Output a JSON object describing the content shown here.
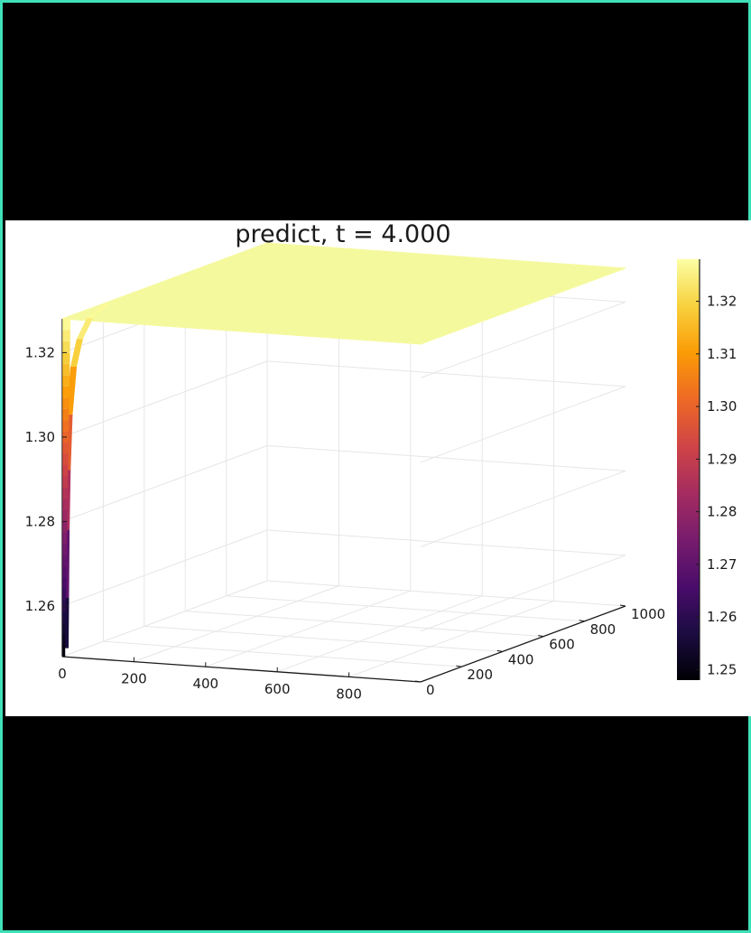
{
  "colors": {
    "frame_border": "#40e0b8",
    "letterbox": "#000000",
    "plot_background": "#ffffff",
    "surface_top": "#f5f99e",
    "colormap": [
      "#000004",
      "#1b0c41",
      "#4a0c6b",
      "#781c6d",
      "#a52c60",
      "#cf4446",
      "#ed6925",
      "#fb9b06",
      "#f7d13d",
      "#fcffa4"
    ]
  },
  "chart_data": {
    "type": "surface",
    "colormap": "inferno",
    "title": "predict, t = 4.000",
    "x_ticks": [
      0,
      200,
      400,
      600,
      800
    ],
    "y_ticks": [
      0,
      200,
      400,
      600,
      800,
      1000
    ],
    "z_ticks": [
      1.26,
      1.28,
      1.3,
      1.32
    ],
    "colorbar_ticks": [
      1.25,
      1.26,
      1.27,
      1.28,
      1.29,
      1.3,
      1.31,
      1.32
    ],
    "colorbar_labels": [
      "1.25",
      "1.26",
      "1.27",
      "1.28",
      "1.29",
      "1.30",
      "1.31",
      "1.32"
    ],
    "xlim": [
      0,
      1000
    ],
    "ylim": [
      0,
      1000
    ],
    "zlim": [
      1.248,
      1.328
    ],
    "clim": [
      1.248,
      1.328
    ],
    "surface_plateau_value": 1.328,
    "edge_profile_x0": [
      {
        "y": 0,
        "z": 1.25
      },
      {
        "y": 2,
        "z": 1.262
      },
      {
        "y": 5,
        "z": 1.278
      },
      {
        "y": 10,
        "z": 1.292
      },
      {
        "y": 20,
        "z": 1.305
      },
      {
        "y": 40,
        "z": 1.316
      },
      {
        "y": 70,
        "z": 1.322
      },
      {
        "y": 120,
        "z": 1.326
      },
      {
        "y": 200,
        "z": 1.328
      }
    ],
    "grid": true,
    "legend": "colorbar right"
  }
}
